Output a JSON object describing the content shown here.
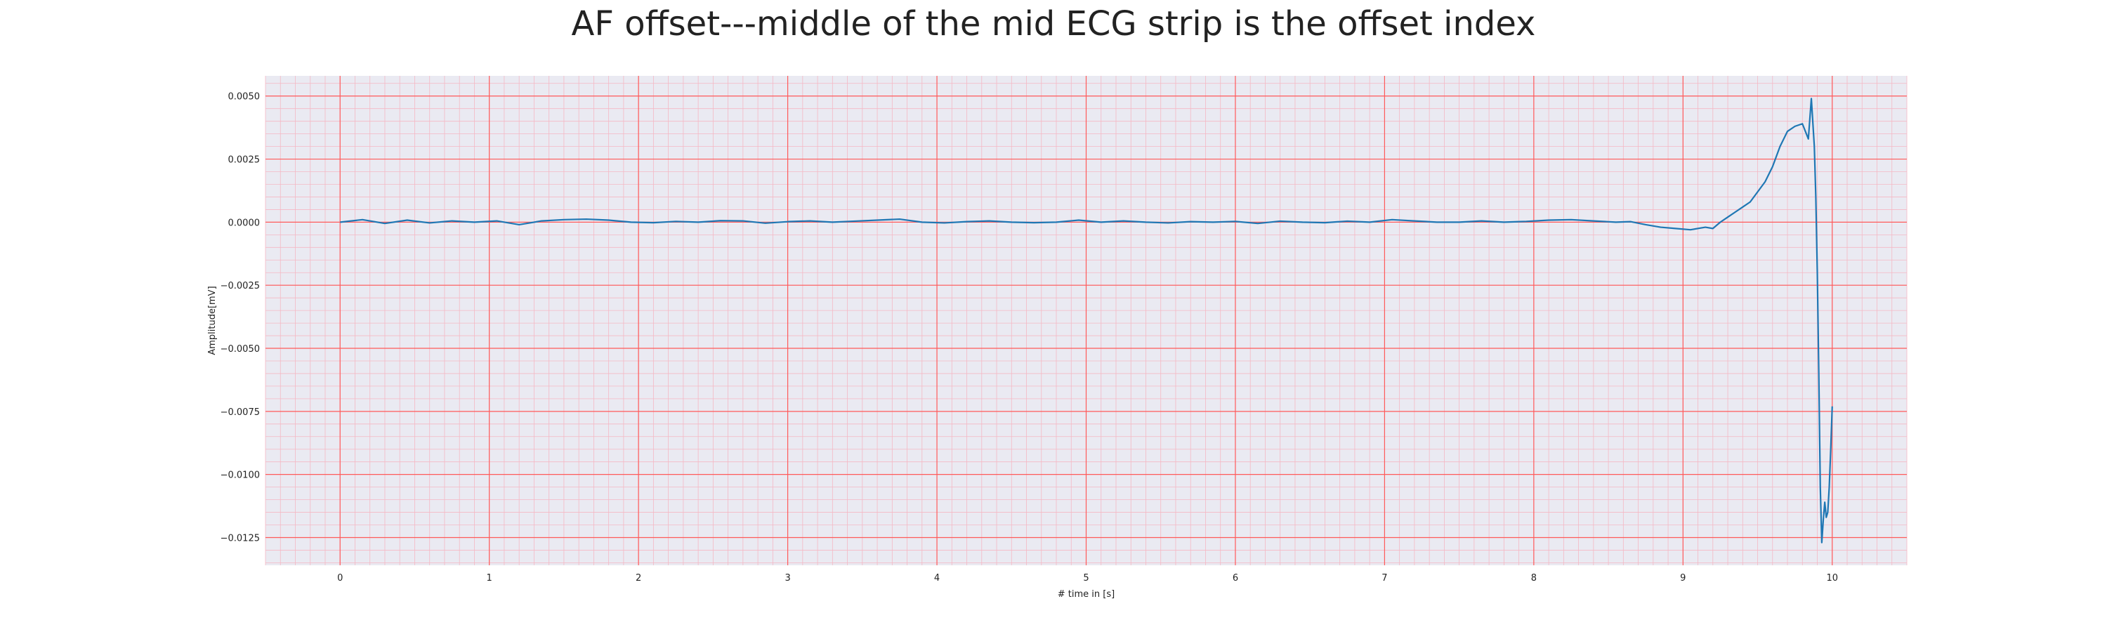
{
  "chart_data": {
    "type": "line",
    "title": "AF offset---middle of the mid ECG strip is the offset index",
    "xlabel": "# time in [s]",
    "ylabel": "Amplitude[mV]",
    "xlim": [
      -0.5,
      10.5
    ],
    "ylim": [
      -0.0136,
      0.0058
    ],
    "xticks": [
      0,
      1,
      2,
      3,
      4,
      5,
      6,
      7,
      8,
      9,
      10
    ],
    "xtick_labels": [
      "0",
      "1",
      "2",
      "3",
      "4",
      "5",
      "6",
      "7",
      "8",
      "9",
      "10"
    ],
    "yticks": [
      0.005,
      0.0025,
      0.0,
      -0.0025,
      -0.005,
      -0.0075,
      -0.01,
      -0.0125
    ],
    "ytick_labels": [
      "0.0050",
      "0.0025",
      "0.0000",
      "−0.0025",
      "−0.0050",
      "−0.0075",
      "−0.0100",
      "−0.0125"
    ],
    "grid": true,
    "minor_grid": true,
    "colors": {
      "background": "#eaeaf2",
      "major_grid": "#ff5a5a",
      "minor_grid": "#f5b8c4",
      "line": "#1f77b4"
    },
    "series": [
      {
        "values_x": [
          0,
          0.15,
          0.3,
          0.45,
          0.6,
          0.75,
          0.9,
          1.05,
          1.2,
          1.35,
          1.5,
          1.65,
          1.8,
          1.95,
          2.1,
          2.25,
          2.4,
          2.55,
          2.7,
          2.85,
          3.0,
          3.15,
          3.3,
          3.45,
          3.6,
          3.75,
          3.9,
          4.05,
          4.2,
          4.35,
          4.5,
          4.65,
          4.8,
          4.95,
          5.1,
          5.25,
          5.4,
          5.55,
          5.7,
          5.85,
          6.0,
          6.15,
          6.3,
          6.45,
          6.6,
          6.75,
          6.9,
          7.05,
          7.2,
          7.35,
          7.5,
          7.65,
          7.8,
          7.95,
          8.1,
          8.25,
          8.4,
          8.55,
          8.65,
          8.75,
          8.85,
          8.95,
          9.05,
          9.15,
          9.2,
          9.25,
          9.3,
          9.35,
          9.4,
          9.45,
          9.5,
          9.55,
          9.6,
          9.65,
          9.7,
          9.75,
          9.8,
          9.84,
          9.86,
          9.88,
          9.89,
          9.9,
          9.91,
          9.92,
          9.93,
          9.94,
          9.95,
          9.96,
          9.97,
          9.98,
          9.99,
          10.0
        ],
        "values_y": [
          0.0,
          0.0001,
          -5e-05,
          8e-05,
          -3e-05,
          5e-05,
          0.0,
          5e-05,
          -0.0001,
          5e-05,
          0.0001,
          0.00012,
          8e-05,
          0.0,
          -2e-05,
          3e-05,
          0.0,
          6e-05,
          5e-05,
          -4e-05,
          2e-05,
          5e-05,
          0.0,
          4e-05,
          8e-05,
          0.00012,
          0.0,
          -3e-05,
          2e-05,
          5e-05,
          0.0,
          -2e-05,
          0.0,
          8e-05,
          0.0,
          5e-05,
          0.0,
          -3e-05,
          2e-05,
          0.0,
          3e-05,
          -5e-05,
          4e-05,
          0.0,
          -2e-05,
          4e-05,
          0.0,
          0.0001,
          5e-05,
          0.0,
          0.0,
          5e-05,
          0.0,
          3e-05,
          8e-05,
          0.0001,
          5e-05,
          0.0,
          2e-05,
          -0.0001,
          -0.0002,
          -0.00025,
          -0.0003,
          -0.0002,
          -0.00025,
          0.0,
          0.0002,
          0.0004,
          0.0006,
          0.0008,
          0.0012,
          0.0016,
          0.0022,
          0.003,
          0.0036,
          0.0038,
          0.0039,
          0.0033,
          0.0049,
          0.003,
          0.001,
          -0.002,
          -0.006,
          -0.0105,
          -0.0127,
          -0.0118,
          -0.0111,
          -0.0117,
          -0.0115,
          -0.0105,
          -0.009,
          -0.0073
        ]
      }
    ]
  }
}
